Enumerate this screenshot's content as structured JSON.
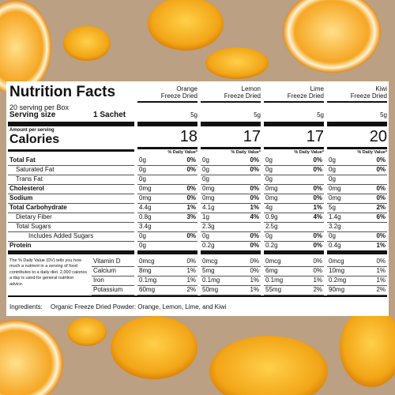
{
  "header": {
    "title": "Nutrition Facts",
    "servings": "20 serving per Box",
    "serving_size_label": "Serving size",
    "serving_size": "1 Sachet",
    "amount_label": "Amount per serving",
    "calories_label": "Calories",
    "dv_label": "% Daily Value*"
  },
  "nutrients": [
    "Total Fat",
    "Saturated Fat",
    "Trans Fat",
    "Cholesterol",
    "Sodium",
    "Total Carbohydrate",
    "Dietary Fiber",
    "Total Sugars",
    "Includes Added Sugars",
    "Protein"
  ],
  "vitamins": [
    "Vitamin D",
    "Calcium",
    "Iron",
    "Potassium"
  ],
  "products": [
    {
      "name": "Orange",
      "subtitle": "Freeze Dried",
      "serving": "5g",
      "calories": "18",
      "nutrients": [
        [
          "0g",
          "0%"
        ],
        [
          "0g",
          "0%"
        ],
        [
          "0g"
        ],
        [
          "0mg",
          "0%"
        ],
        [
          "0mg",
          "0%"
        ],
        [
          "4.4g",
          "1%"
        ],
        [
          "0.8g",
          "3%"
        ],
        [
          "3.4g"
        ],
        [
          "0g",
          "0%"
        ],
        [
          "0g"
        ]
      ],
      "vitamins": [
        [
          "0mcg",
          "0%"
        ],
        [
          "8mg",
          "1%"
        ],
        [
          "0.1mg",
          "1%"
        ],
        [
          "60mg",
          "2%"
        ]
      ]
    },
    {
      "name": "Lemon",
      "subtitle": "Freeze Dried",
      "serving": "5g",
      "calories": "17",
      "nutrients": [
        [
          "0g",
          "0%"
        ],
        [
          "0g",
          "0%"
        ],
        [
          "0g"
        ],
        [
          "0mg",
          "0%"
        ],
        [
          "0mg",
          "0%"
        ],
        [
          "4.1g",
          "1%"
        ],
        [
          "1g",
          "4%"
        ],
        [
          "2.3g"
        ],
        [
          "0g",
          "0%"
        ],
        [
          "0.2g",
          "0%"
        ]
      ],
      "vitamins": [
        [
          "0mcg",
          "0%"
        ],
        [
          "5mg",
          "0%"
        ],
        [
          "0.1mg",
          "1%"
        ],
        [
          "50mg",
          "1%"
        ]
      ]
    },
    {
      "name": "Lime",
      "subtitle": "Freeze Dried",
      "serving": "5g",
      "calories": "17",
      "nutrients": [
        [
          "0g",
          "0%"
        ],
        [
          "0g",
          "0%"
        ],
        [
          "0g"
        ],
        [
          "0mg",
          "0%"
        ],
        [
          "0mg",
          "0%"
        ],
        [
          "4g",
          "1%"
        ],
        [
          "0.9g",
          "4%"
        ],
        [
          "2.5g"
        ],
        [
          "0g",
          "0%"
        ],
        [
          "0.2g",
          "0%"
        ]
      ],
      "vitamins": [
        [
          "0mcg",
          "0%"
        ],
        [
          "6mg",
          "0%"
        ],
        [
          "0.1mg",
          "1%"
        ],
        [
          "55mg",
          "2%"
        ]
      ]
    },
    {
      "name": "Kiwi",
      "subtitle": "Freeze Dried",
      "serving": "5g",
      "calories": "20",
      "nutrients": [
        [
          "0g",
          "0%"
        ],
        [
          "0g",
          "0%"
        ],
        [
          "0g"
        ],
        [
          "0mg",
          "0%"
        ],
        [
          "0mg",
          "0%"
        ],
        [
          "5g",
          "2%"
        ],
        [
          "1.4g",
          "6%"
        ],
        [
          "3.2g"
        ],
        [
          "0g",
          "0%"
        ],
        [
          "0.4g",
          "1%"
        ]
      ],
      "vitamins": [
        [
          "0mcg",
          "0%"
        ],
        [
          "10mg",
          "1%"
        ],
        [
          "0.2mg",
          "1%"
        ],
        [
          "90mg",
          "2%"
        ]
      ]
    }
  ],
  "footnote": "The % Daily Value (DV) tells you how much a nutrient in a serving of food contributes to a daily diet. 2,000 calories a day is used for general nutrition advice.",
  "ingredients": {
    "label": "Ingredients:",
    "text": "Organic Freeze Dried Powder: Orange, Lemon, Lime, and Kiwi"
  }
}
